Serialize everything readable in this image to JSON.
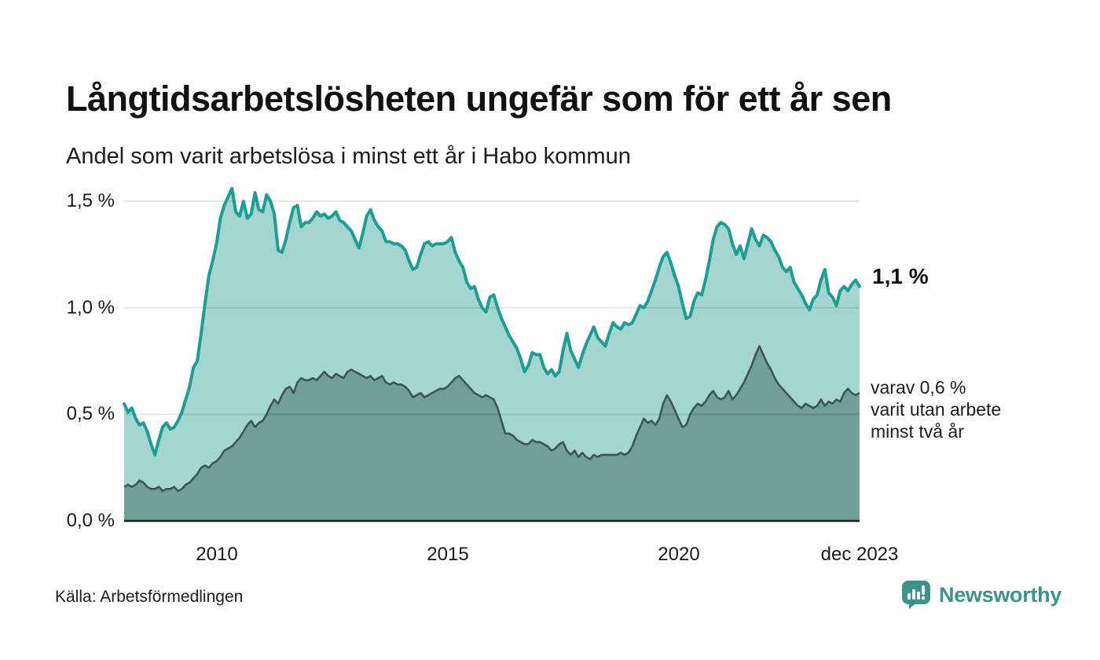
{
  "title": "Långtidsarbetslösheten ungefär som för ett år sen",
  "subtitle": "Andel som varit arbetslösa i minst ett år i Habo kommun",
  "source": "Källa: Arbetsförmedlingen",
  "branding": {
    "name": "Newsworthy",
    "color": "#3a948b"
  },
  "annotations": {
    "latest_value": "1,1 %",
    "sub_lines": [
      "varav 0,6 %",
      "varit utan arbete",
      "minst två år"
    ]
  },
  "chart_data": {
    "type": "area",
    "title": "Andel som varit arbetslösa i minst ett år i Habo kommun",
    "x_start_year": 2008,
    "x_end_label": "dec 2023",
    "x_interval": "monthly",
    "ylim": [
      0,
      1.6
    ],
    "grid": "horizontal",
    "gridline_color": "rgba(0,0,0,0.10)",
    "axis_color": "#1b1b1b",
    "y_ticks": [
      {
        "v": 0,
        "label": "0,0 %"
      },
      {
        "v": 0.5,
        "label": "0,5 %"
      },
      {
        "v": 1,
        "label": "1,0 %"
      },
      {
        "v": 1.5,
        "label": "1,5 %"
      }
    ],
    "x_ticks": [
      {
        "v": 2010,
        "label": "2010"
      },
      {
        "v": 2015,
        "label": "2015"
      },
      {
        "v": 2020,
        "label": "2020"
      },
      {
        "v": 2023.92,
        "label": "dec 2023"
      }
    ],
    "series": [
      {
        "name": "Andel arbetslösa minst ett år",
        "line_color": "#1b9e93",
        "fill_color": "#a4d5cf",
        "latest_value_pct": 1.1,
        "values": [
          0.55,
          0.51,
          0.53,
          0.48,
          0.45,
          0.46,
          0.42,
          0.36,
          0.31,
          0.38,
          0.44,
          0.46,
          0.43,
          0.44,
          0.47,
          0.51,
          0.57,
          0.63,
          0.72,
          0.75,
          0.88,
          1.02,
          1.15,
          1.22,
          1.3,
          1.42,
          1.48,
          1.52,
          1.56,
          1.45,
          1.43,
          1.5,
          1.42,
          1.44,
          1.54,
          1.46,
          1.45,
          1.53,
          1.5,
          1.44,
          1.27,
          1.26,
          1.32,
          1.4,
          1.47,
          1.48,
          1.38,
          1.4,
          1.4,
          1.42,
          1.45,
          1.43,
          1.44,
          1.42,
          1.43,
          1.45,
          1.41,
          1.4,
          1.38,
          1.36,
          1.32,
          1.28,
          1.35,
          1.43,
          1.46,
          1.41,
          1.38,
          1.36,
          1.31,
          1.31,
          1.3,
          1.3,
          1.29,
          1.27,
          1.22,
          1.18,
          1.19,
          1.25,
          1.3,
          1.31,
          1.29,
          1.3,
          1.3,
          1.3,
          1.31,
          1.33,
          1.26,
          1.22,
          1.19,
          1.12,
          1.09,
          1.1,
          1.04,
          1.0,
          0.98,
          1.05,
          1.06,
          1.0,
          0.95,
          0.91,
          0.87,
          0.84,
          0.81,
          0.76,
          0.7,
          0.73,
          0.79,
          0.78,
          0.78,
          0.72,
          0.69,
          0.71,
          0.68,
          0.7,
          0.8,
          0.88,
          0.8,
          0.76,
          0.72,
          0.78,
          0.83,
          0.87,
          0.91,
          0.86,
          0.84,
          0.82,
          0.88,
          0.93,
          0.91,
          0.9,
          0.93,
          0.92,
          0.93,
          0.97,
          1.01,
          1.0,
          1.03,
          1.08,
          1.13,
          1.19,
          1.24,
          1.26,
          1.21,
          1.15,
          1.1,
          1.02,
          0.95,
          0.96,
          1.03,
          1.07,
          1.06,
          1.13,
          1.22,
          1.32,
          1.38,
          1.4,
          1.39,
          1.37,
          1.3,
          1.25,
          1.29,
          1.23,
          1.3,
          1.37,
          1.32,
          1.29,
          1.34,
          1.33,
          1.31,
          1.27,
          1.24,
          1.19,
          1.17,
          1.19,
          1.12,
          1.09,
          1.06,
          1.02,
          0.99,
          1.04,
          1.06,
          1.13,
          1.18,
          1.07,
          1.05,
          1.01,
          1.08,
          1.1,
          1.08,
          1.11,
          1.13,
          1.1
        ]
      },
      {
        "name": "varav utan arbete minst två år",
        "line_color": "#3a5752",
        "fill_color": "#709e98",
        "latest_value_pct": 0.6,
        "values": [
          0.16,
          0.17,
          0.16,
          0.17,
          0.19,
          0.18,
          0.16,
          0.15,
          0.15,
          0.16,
          0.14,
          0.15,
          0.15,
          0.16,
          0.14,
          0.15,
          0.17,
          0.18,
          0.2,
          0.22,
          0.25,
          0.26,
          0.25,
          0.27,
          0.28,
          0.3,
          0.33,
          0.34,
          0.35,
          0.37,
          0.39,
          0.42,
          0.45,
          0.47,
          0.44,
          0.46,
          0.47,
          0.5,
          0.54,
          0.57,
          0.55,
          0.59,
          0.62,
          0.63,
          0.6,
          0.65,
          0.67,
          0.66,
          0.66,
          0.67,
          0.66,
          0.68,
          0.7,
          0.68,
          0.67,
          0.69,
          0.68,
          0.67,
          0.7,
          0.71,
          0.7,
          0.69,
          0.68,
          0.67,
          0.68,
          0.66,
          0.67,
          0.68,
          0.65,
          0.64,
          0.65,
          0.64,
          0.64,
          0.63,
          0.61,
          0.58,
          0.59,
          0.6,
          0.58,
          0.59,
          0.6,
          0.61,
          0.62,
          0.62,
          0.63,
          0.65,
          0.67,
          0.68,
          0.66,
          0.64,
          0.62,
          0.6,
          0.59,
          0.58,
          0.59,
          0.58,
          0.57,
          0.53,
          0.47,
          0.41,
          0.41,
          0.4,
          0.38,
          0.37,
          0.36,
          0.36,
          0.38,
          0.37,
          0.37,
          0.36,
          0.35,
          0.33,
          0.34,
          0.36,
          0.37,
          0.33,
          0.31,
          0.33,
          0.3,
          0.32,
          0.3,
          0.29,
          0.31,
          0.3,
          0.31,
          0.31,
          0.31,
          0.31,
          0.31,
          0.32,
          0.31,
          0.32,
          0.35,
          0.4,
          0.44,
          0.48,
          0.46,
          0.47,
          0.45,
          0.48,
          0.55,
          0.59,
          0.56,
          0.52,
          0.48,
          0.44,
          0.45,
          0.5,
          0.53,
          0.55,
          0.54,
          0.56,
          0.59,
          0.61,
          0.58,
          0.57,
          0.58,
          0.61,
          0.57,
          0.59,
          0.62,
          0.65,
          0.69,
          0.73,
          0.78,
          0.82,
          0.78,
          0.74,
          0.71,
          0.67,
          0.64,
          0.62,
          0.6,
          0.58,
          0.56,
          0.54,
          0.53,
          0.55,
          0.54,
          0.53,
          0.54,
          0.57,
          0.54,
          0.56,
          0.55,
          0.57,
          0.56,
          0.6,
          0.62,
          0.6,
          0.59,
          0.6
        ]
      }
    ]
  }
}
